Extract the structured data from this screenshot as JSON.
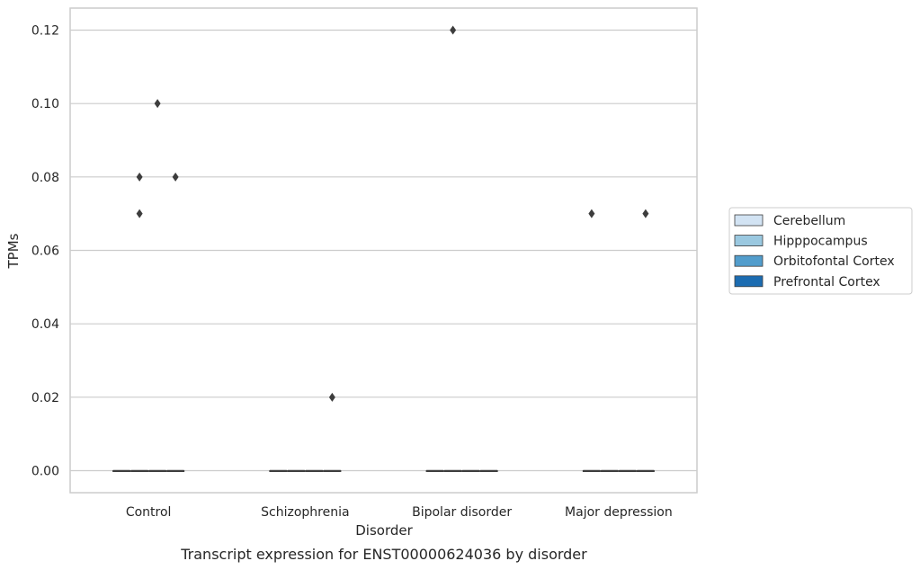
{
  "chart_data": {
    "type": "box",
    "title": "",
    "caption": "Transcript expression for ENST00000624036 by disorder",
    "xlabel": "Disorder",
    "ylabel": "TPMs",
    "categories": [
      "Control",
      "Schizophrenia",
      "Bipolar disorder",
      "Major depression"
    ],
    "ylim": [
      -0.006,
      0.126
    ],
    "yticks": [
      0.0,
      0.02,
      0.04,
      0.06,
      0.08,
      0.1,
      0.12
    ],
    "ytick_labels": [
      "0.00",
      "0.02",
      "0.04",
      "0.06",
      "0.08",
      "0.10",
      "0.12"
    ],
    "grid": true,
    "legend_position": "right",
    "series": [
      {
        "name": "Cerebellum",
        "color": "#d2e3f3",
        "boxes": [
          {
            "q1": 0,
            "median": 0,
            "q3": 0,
            "whisker_low": 0,
            "whisker_high": 0,
            "outliers": []
          },
          {
            "q1": 0,
            "median": 0,
            "q3": 0,
            "whisker_low": 0,
            "whisker_high": 0,
            "outliers": []
          },
          {
            "q1": 0,
            "median": 0,
            "q3": 0,
            "whisker_low": 0,
            "whisker_high": 0,
            "outliers": []
          },
          {
            "q1": 0,
            "median": 0,
            "q3": 0,
            "whisker_low": 0,
            "whisker_high": 0,
            "outliers": []
          }
        ]
      },
      {
        "name": "Hipppocampus",
        "color": "#9ac8e0",
        "boxes": [
          {
            "q1": 0,
            "median": 0,
            "q3": 0,
            "whisker_low": 0,
            "whisker_high": 0,
            "outliers": [
              0.07,
              0.08
            ]
          },
          {
            "q1": 0,
            "median": 0,
            "q3": 0,
            "whisker_low": 0,
            "whisker_high": 0,
            "outliers": []
          },
          {
            "q1": 0,
            "median": 0,
            "q3": 0,
            "whisker_low": 0,
            "whisker_high": 0,
            "outliers": []
          },
          {
            "q1": 0,
            "median": 0,
            "q3": 0,
            "whisker_low": 0,
            "whisker_high": 0,
            "outliers": []
          }
        ]
      },
      {
        "name": "Orbitofontal Cortex",
        "color": "#529dcc",
        "boxes": [
          {
            "q1": 0,
            "median": 0,
            "q3": 0,
            "whisker_low": 0,
            "whisker_high": 0,
            "outliers": [
              0.1
            ]
          },
          {
            "q1": 0,
            "median": 0,
            "q3": 0,
            "whisker_low": 0,
            "whisker_high": 0,
            "outliers": []
          },
          {
            "q1": 0,
            "median": 0,
            "q3": 0,
            "whisker_low": 0,
            "whisker_high": 0,
            "outliers": []
          },
          {
            "q1": 0,
            "median": 0,
            "q3": 0,
            "whisker_low": 0,
            "whisker_high": 0,
            "outliers": []
          }
        ]
      },
      {
        "name": "Prefrontal Cortex",
        "color": "#1c6cb1",
        "boxes": [
          {
            "q1": 0,
            "median": 0,
            "q3": 0,
            "whisker_low": 0,
            "whisker_high": 0,
            "outliers": [
              0.08
            ]
          },
          {
            "q1": 0,
            "median": 0,
            "q3": 0,
            "whisker_low": 0,
            "whisker_high": 0,
            "outliers": []
          },
          {
            "q1": 0,
            "median": 0,
            "q3": 0,
            "whisker_low": 0,
            "whisker_high": 0,
            "outliers": []
          },
          {
            "q1": 0,
            "median": 0,
            "q3": 0,
            "whisker_low": 0,
            "whisker_high": 0,
            "outliers": []
          }
        ]
      }
    ],
    "outlier_overrides_note": "",
    "extra_outliers": [
      {
        "category": "Schizophrenia",
        "series": "Prefrontal Cortex",
        "value": 0.02
      },
      {
        "category": "Bipolar disorder",
        "series": "Hipppocampus",
        "value": 0.12
      },
      {
        "category": "Major depression",
        "series": "Cerebellum",
        "value": 0.07
      },
      {
        "category": "Major depression",
        "series": "Prefrontal Cortex",
        "value": 0.07
      }
    ],
    "colors": {
      "grid": "#cccccc",
      "frame": "#cccccc",
      "median": "#3d3d3d",
      "marker": "#3d3d3d"
    }
  }
}
